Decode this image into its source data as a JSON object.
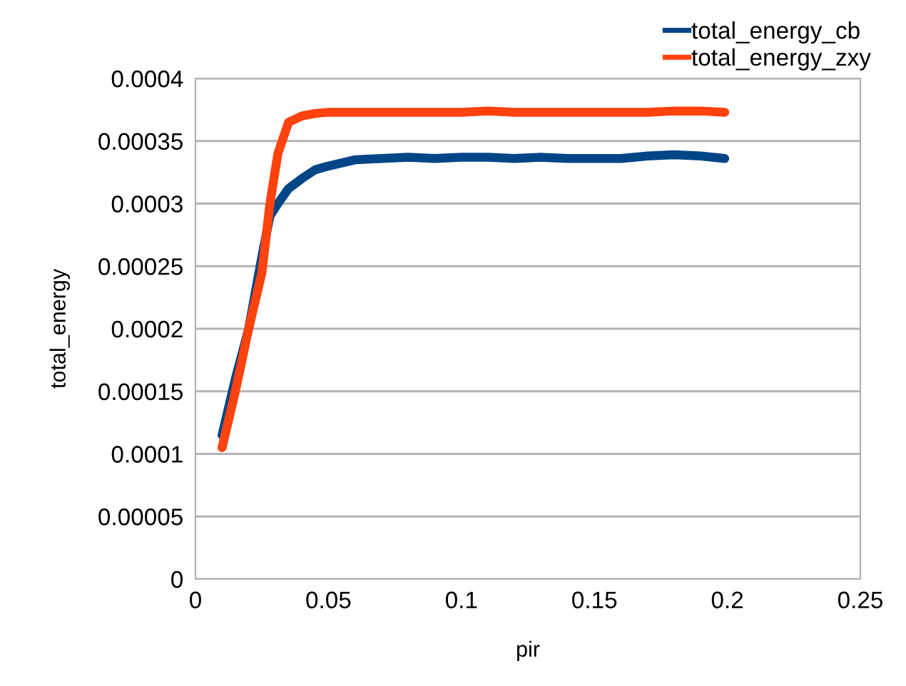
{
  "chart_data": {
    "type": "line",
    "xlabel": "pir",
    "ylabel": "total_energy",
    "xlim": [
      0,
      0.25
    ],
    "xticks": [
      0,
      0.05,
      0.1,
      0.15,
      0.2,
      0.25
    ],
    "ylim": [
      0,
      0.0004
    ],
    "yticks": [
      0,
      {
        "value": 5e-05,
        "label": "0.00005"
      },
      0.0001,
      0.00015,
      0.0002,
      0.00025,
      0.0003,
      0.00035,
      0.0004
    ],
    "grid": "y",
    "legend": "top right",
    "marker": "none",
    "line_style": "solid",
    "x": [
      0.01,
      0.015,
      0.02,
      0.025,
      0.028,
      0.031,
      0.035,
      0.04,
      0.045,
      0.05,
      0.06,
      0.07,
      0.08,
      0.09,
      0.1,
      0.11,
      0.12,
      0.13,
      0.14,
      0.15,
      0.16,
      0.17,
      0.18,
      0.19,
      0.199
    ],
    "series": [
      {
        "name": "total_energy_cb",
        "color": "#004586",
        "values": [
          0.000115,
          0.00016,
          0.0002,
          0.000258,
          0.00029,
          0.0003,
          0.000312,
          0.00032,
          0.000327,
          0.00033,
          0.000335,
          0.000336,
          0.000337,
          0.000336,
          0.000337,
          0.000337,
          0.000336,
          0.000337,
          0.000336,
          0.000336,
          0.000336,
          0.000338,
          0.000339,
          0.000338,
          0.000336
        ]
      },
      {
        "name": "total_energy_zxy",
        "color": "#ff420e",
        "values": [
          0.000105,
          0.00015,
          0.0002,
          0.000245,
          0.0003,
          0.00034,
          0.000365,
          0.00037,
          0.000372,
          0.000373,
          0.000373,
          0.000373,
          0.000373,
          0.000373,
          0.000373,
          0.000374,
          0.000373,
          0.000373,
          0.000373,
          0.000373,
          0.000373,
          0.000373,
          0.000374,
          0.000374,
          0.000373
        ]
      }
    ]
  }
}
